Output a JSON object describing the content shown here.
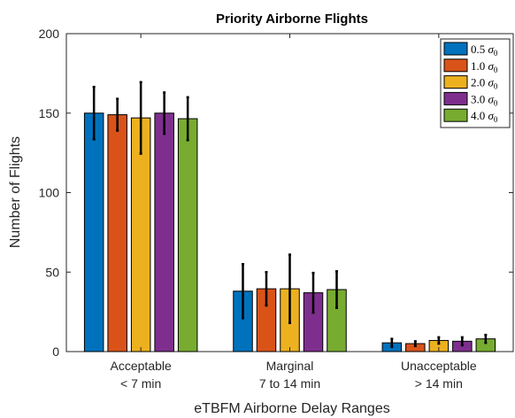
{
  "chart_data": {
    "type": "bar",
    "title": "Priority Airborne Flights",
    "xlabel": "eTBFM Airborne Delay Ranges",
    "ylabel": "Number of Flights",
    "ylim": [
      0,
      200
    ],
    "yticks": [
      "0",
      "50",
      "100",
      "150",
      "200"
    ],
    "grid": false,
    "legend_position": "top-right",
    "categories": [
      {
        "line1": "Acceptable",
        "line2": "< 7 min"
      },
      {
        "line1": "Marginal",
        "line2": "7 to 14 min"
      },
      {
        "line1": "Unacceptable",
        "line2": "> 14 min"
      }
    ],
    "series": [
      {
        "name": "0.5",
        "sym": "σ",
        "sub": "0",
        "color": "#0072bd",
        "values": [
          150,
          38,
          5.5
        ],
        "err": [
          16.5,
          17,
          2.5
        ]
      },
      {
        "name": "1.0",
        "sym": "σ",
        "sub": "0",
        "color": "#d95319",
        "values": [
          149,
          39.5,
          5
        ],
        "err": [
          10,
          10.5,
          1.5
        ]
      },
      {
        "name": "2.0",
        "sym": "σ",
        "sub": "0",
        "color": "#edb120",
        "values": [
          147,
          39.5,
          7
        ],
        "err": [
          22.5,
          21.5,
          2
        ]
      },
      {
        "name": "3.0",
        "sym": "σ",
        "sub": "0",
        "color": "#7e2f8e",
        "values": [
          150,
          37,
          6.5
        ],
        "err": [
          13,
          12.5,
          2.5
        ]
      },
      {
        "name": "4.0",
        "sym": "σ",
        "sub": "0",
        "color": "#77ac30",
        "values": [
          146.5,
          39,
          8
        ],
        "err": [
          13.5,
          11.5,
          2.5
        ]
      }
    ]
  }
}
